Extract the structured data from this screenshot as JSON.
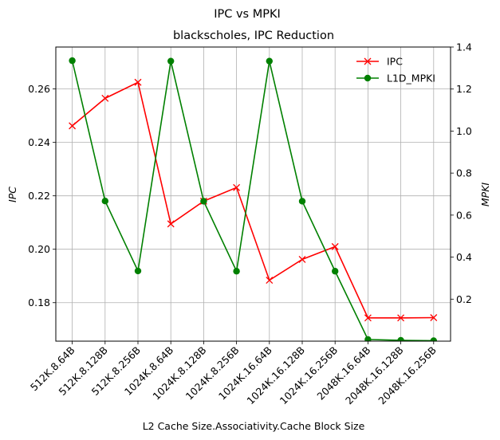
{
  "chart_data": {
    "type": "line",
    "suptitle": "IPC vs MPKI",
    "title": "blackscholes, IPC Reduction",
    "xlabel": "L2 Cache Size.Associativity.Cache Block Size",
    "ylabel_left": "IPC",
    "ylabel_right": "MPKI",
    "categories": [
      "512K.8.64B",
      "512K.8.128B",
      "512K.8.256B",
      "1024K.8.64B",
      "1024K.8.128B",
      "1024K.8.256B",
      "1024K.16.64B",
      "1024K.16.128B",
      "1024K.16.256B",
      "2048K.16.64B",
      "2048K.16.128B",
      "2048K.16.256B"
    ],
    "ylim_left": [
      0.1656,
      0.2757
    ],
    "ylim_right": [
      0.0,
      1.4
    ],
    "yticks_left": [
      0.18,
      0.2,
      0.22,
      0.24,
      0.26
    ],
    "yticks_left_labels": [
      "0.18",
      "0.20",
      "0.22",
      "0.24",
      "0.26"
    ],
    "yticks_right": [
      0.2,
      0.4,
      0.6,
      0.8,
      1.0,
      1.2,
      1.4
    ],
    "yticks_right_labels": [
      "0.2",
      "0.4",
      "0.6",
      "0.8",
      "1.0",
      "1.2",
      "1.4"
    ],
    "grid": true,
    "legend_position": "upper-right",
    "series": [
      {
        "name": "IPC",
        "axis": "left",
        "color": "#ff0000",
        "marker": "x",
        "values": [
          0.2462,
          0.2565,
          0.2625,
          0.2095,
          0.218,
          0.2231,
          0.1884,
          0.1962,
          0.201,
          0.1743,
          0.1743,
          0.1744
        ]
      },
      {
        "name": "L1D_MPKI",
        "axis": "right",
        "color": "#008000",
        "marker": "circle",
        "values": [
          1.335,
          0.667,
          0.334,
          1.333,
          0.666,
          0.333,
          1.333,
          0.666,
          0.333,
          0.008,
          0.004,
          0.002
        ]
      }
    ]
  }
}
